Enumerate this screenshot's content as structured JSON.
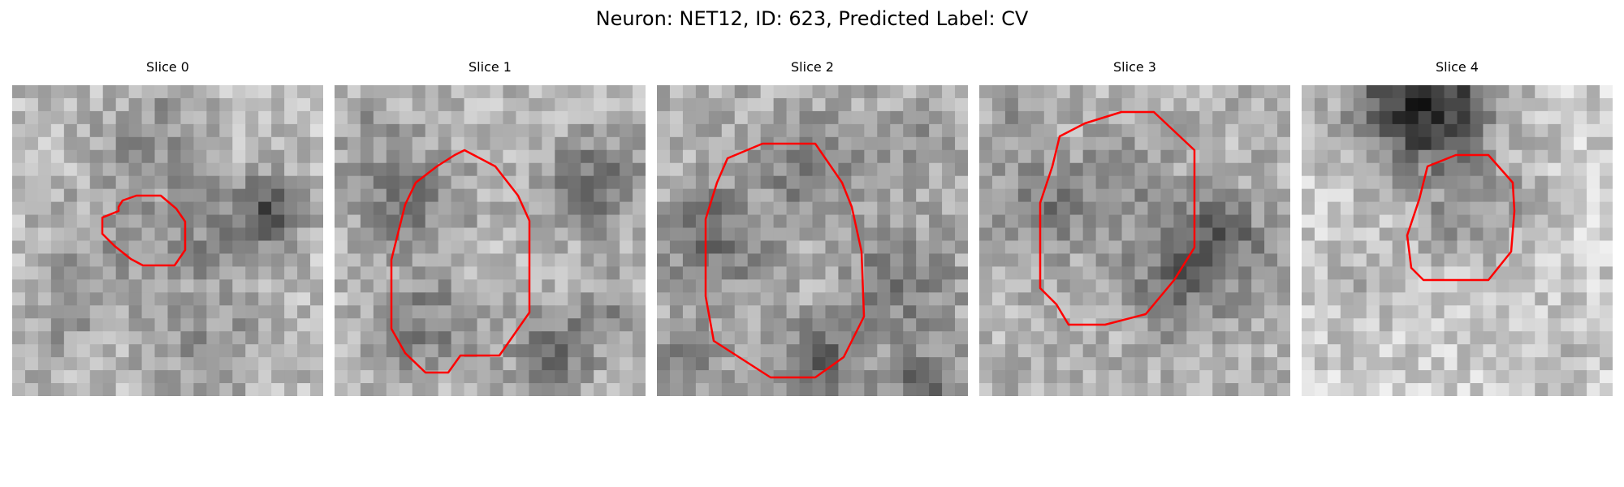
{
  "figure": {
    "title": "Neuron: NET12, ID: 623, Predicted Label: CV"
  },
  "panels": [
    {
      "title": "Slice 0"
    },
    {
      "title": "Slice 1"
    },
    {
      "title": "Slice 2"
    },
    {
      "title": "Slice 3"
    },
    {
      "title": "Slice 4"
    }
  ],
  "colors": {
    "contour": "#ff0000",
    "background": "#ffffff",
    "image_colormap": "grayscale"
  }
}
